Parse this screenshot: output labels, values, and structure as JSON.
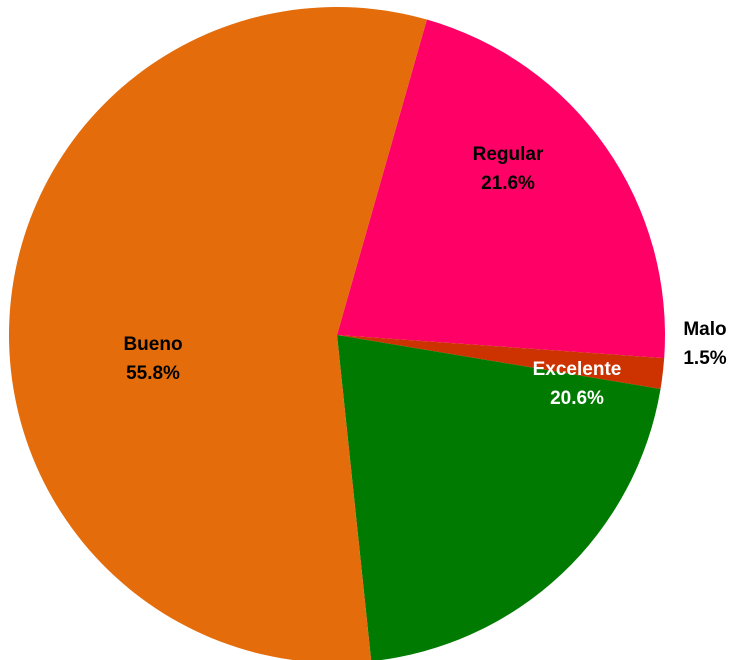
{
  "chart_data": {
    "type": "pie",
    "categories": [
      "Regular",
      "Malo",
      "Excelente",
      "Bueno"
    ],
    "values": [
      21.6,
      1.5,
      20.6,
      55.8
    ],
    "value_labels": [
      "21.6%",
      "1.5%",
      "20.6%",
      "55.8%"
    ],
    "colors": [
      "#ff0066",
      "#cc3300",
      "#007a00",
      "#e46c0a"
    ]
  }
}
